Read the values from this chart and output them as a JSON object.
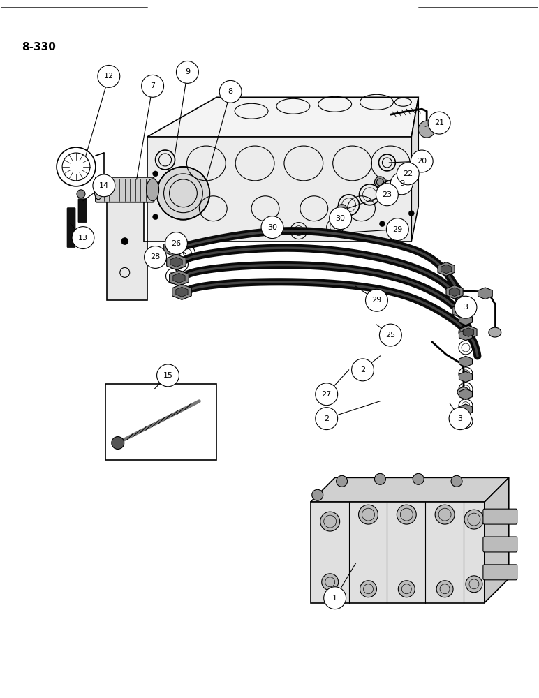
{
  "page_label": "8-330",
  "bg": "#ffffff",
  "lc": "#000000",
  "fig_w": 7.72,
  "fig_h": 10.0,
  "dpi": 100
}
